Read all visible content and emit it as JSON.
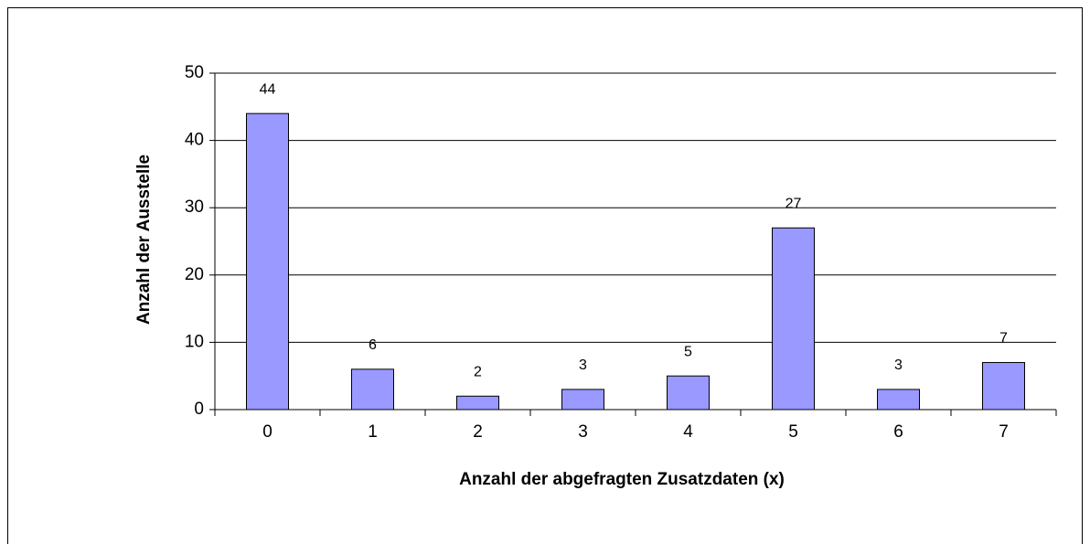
{
  "chart_data": {
    "type": "bar",
    "x_label": "Anzahl der abgefragten Zusatzdaten  (x)",
    "y_label": "Anzahl der Ausstelle",
    "categories": [
      "0",
      "1",
      "2",
      "3",
      "4",
      "5",
      "6",
      "7"
    ],
    "values": [
      44,
      6,
      2,
      3,
      5,
      27,
      3,
      7
    ],
    "color": "#9999ff",
    "ylim": [
      0,
      50
    ],
    "yticks": [
      0,
      10,
      20,
      30,
      40,
      50
    ],
    "grid": true,
    "data_labels": true
  }
}
